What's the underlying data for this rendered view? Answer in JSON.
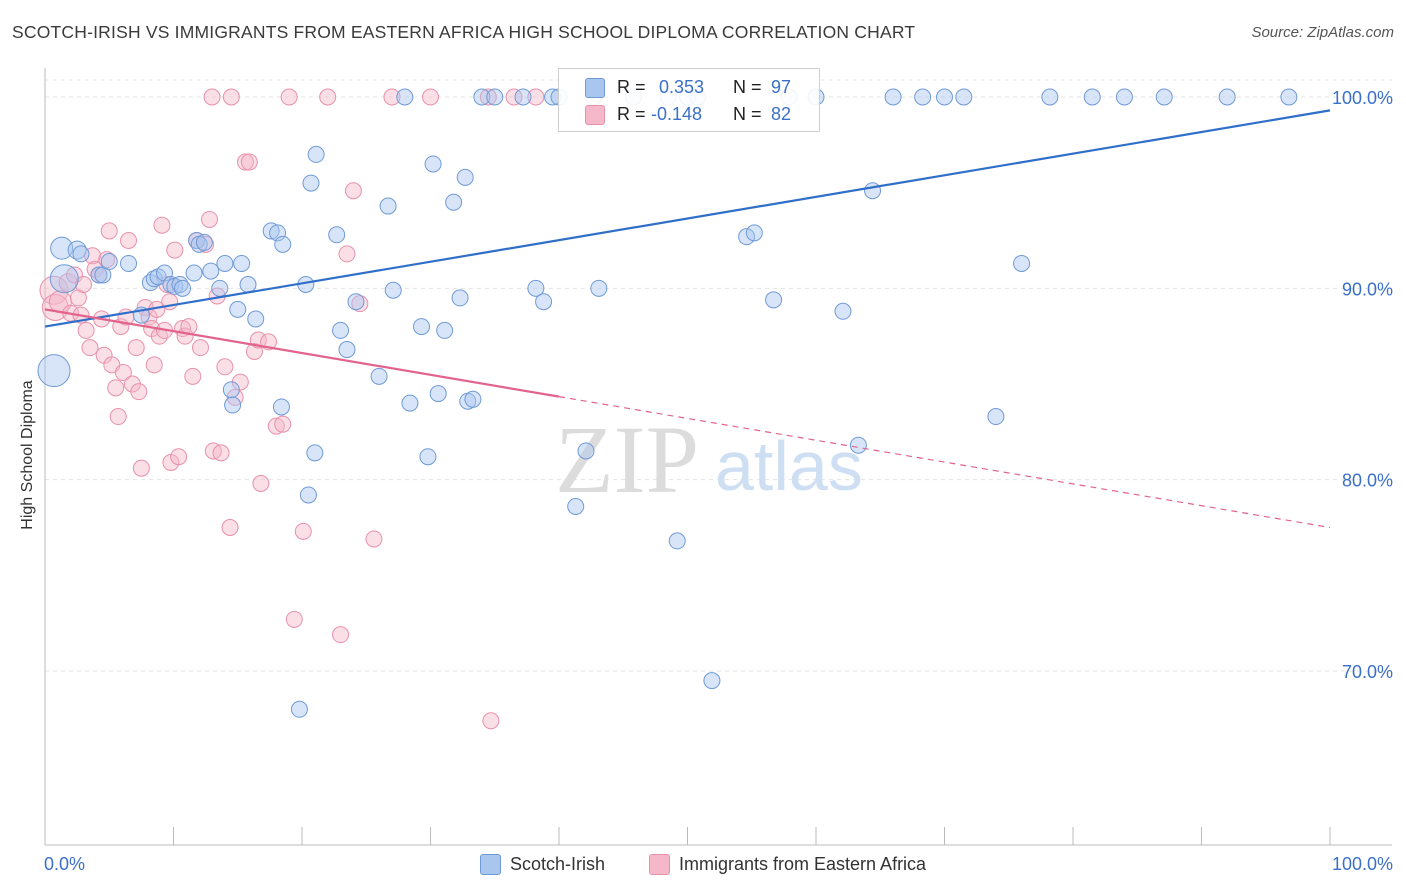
{
  "header": {
    "title": "SCOTCH-IRISH VS IMMIGRANTS FROM EASTERN AFRICA HIGH SCHOOL DIPLOMA CORRELATION CHART",
    "source": "Source: ZipAtlas.com"
  },
  "watermark": {
    "zip": "ZIP",
    "atlas": "atlas"
  },
  "legend": {
    "rows": [
      {
        "r_label": "R =",
        "r_value": "0.353",
        "n_label": "N =",
        "n_value": "97"
      },
      {
        "r_label": "R =",
        "r_value": "-0.148",
        "n_label": "N =",
        "n_value": "82"
      }
    ]
  },
  "bottom_legend": {
    "series1": "Scotch-Irish",
    "series2": "Immigrants from Eastern Africa"
  },
  "chart_data": {
    "type": "scatter",
    "xlabel": "",
    "ylabel": "High School Diploma",
    "xlim": [
      0,
      100
    ],
    "ylim": [
      60.7,
      101.5
    ],
    "x_tick_labels": [
      "0.0%",
      "100.0%"
    ],
    "y_tick_labels": [
      "100.0%",
      "90.0%",
      "80.0%",
      "70.0%"
    ],
    "y_ticks": [
      100,
      90,
      80,
      70
    ],
    "grid": true,
    "colors": {
      "series1_fill": "#a9c6ef",
      "series1_stroke": "#6f9ad6",
      "series1_line": "#2f6fca",
      "series2_fill": "#f5b8ca",
      "series2_stroke": "#e891ab",
      "series2_line": "#e2648c",
      "axis_text": "#3a70c9"
    },
    "series": [
      {
        "name": "Scotch-Irish",
        "trend": {
          "x": [
            0,
            100
          ],
          "y": [
            88.0,
            99.3
          ],
          "dashed_from": null
        },
        "points": [
          [
            0.7,
            85.7,
            16
          ],
          [
            1.3,
            92.1,
            11
          ],
          [
            1.5,
            90.5,
            14
          ],
          [
            2.5,
            92.0,
            9
          ],
          [
            2.8,
            91.8,
            8
          ],
          [
            4.2,
            90.7,
            8
          ],
          [
            4.5,
            90.7,
            8
          ],
          [
            5.0,
            91.4,
            8
          ],
          [
            6.5,
            91.3,
            8
          ],
          [
            7.5,
            88.6,
            8
          ],
          [
            8.2,
            90.3,
            8
          ],
          [
            8.5,
            90.5,
            8
          ],
          [
            8.8,
            90.6,
            8
          ],
          [
            9.3,
            90.8,
            8
          ],
          [
            9.8,
            90.2,
            8
          ],
          [
            10.1,
            90.1,
            8
          ],
          [
            10.5,
            90.2,
            8
          ],
          [
            10.7,
            90.0,
            8
          ],
          [
            11.6,
            90.8,
            8
          ],
          [
            11.8,
            92.5,
            8
          ],
          [
            12.0,
            92.3,
            8
          ],
          [
            12.4,
            92.4,
            8
          ],
          [
            13.6,
            90.0,
            8
          ],
          [
            12.9,
            90.9,
            8
          ],
          [
            14.0,
            91.3,
            8
          ],
          [
            14.5,
            84.7,
            8
          ],
          [
            14.6,
            83.9,
            8
          ],
          [
            15.0,
            88.9,
            8
          ],
          [
            15.8,
            90.2,
            8
          ],
          [
            16.4,
            88.4,
            8
          ],
          [
            15.3,
            91.3,
            8
          ],
          [
            17.6,
            93.0,
            8
          ],
          [
            18.1,
            92.9,
            8
          ],
          [
            18.5,
            92.3,
            8
          ],
          [
            20.3,
            90.2,
            8
          ],
          [
            20.7,
            95.5,
            8
          ],
          [
            18.4,
            83.8,
            8
          ],
          [
            19.8,
            68.0,
            8
          ],
          [
            20.5,
            79.2,
            8
          ],
          [
            21.0,
            81.4,
            8
          ],
          [
            21.1,
            97.0,
            8
          ],
          [
            22.7,
            92.8,
            8
          ],
          [
            23.0,
            87.8,
            8
          ],
          [
            23.5,
            86.8,
            8
          ],
          [
            24.2,
            89.3,
            8
          ],
          [
            26.0,
            85.4,
            8
          ],
          [
            26.7,
            94.3,
            8
          ],
          [
            27.1,
            89.9,
            8
          ],
          [
            28.4,
            84.0,
            8
          ],
          [
            28.0,
            100.0,
            8
          ],
          [
            29.3,
            88.0,
            8
          ],
          [
            29.8,
            81.2,
            8
          ],
          [
            30.2,
            96.5,
            8
          ],
          [
            30.6,
            84.5,
            8
          ],
          [
            31.1,
            87.8,
            8
          ],
          [
            31.8,
            94.5,
            8
          ],
          [
            32.3,
            89.5,
            8
          ],
          [
            32.7,
            95.8,
            8
          ],
          [
            32.9,
            84.1,
            8
          ],
          [
            33.3,
            84.2,
            8
          ],
          [
            34.0,
            100.0,
            8
          ],
          [
            35.0,
            100.0,
            8
          ],
          [
            37.2,
            100.0,
            8
          ],
          [
            38.2,
            90.0,
            8
          ],
          [
            38.8,
            89.3,
            8
          ],
          [
            39.5,
            100.0,
            8
          ],
          [
            40.0,
            100.0,
            8
          ],
          [
            41.3,
            78.6,
            8
          ],
          [
            42.1,
            81.5,
            8
          ],
          [
            42.7,
            100.0,
            8
          ],
          [
            43.1,
            90.0,
            8
          ],
          [
            45.8,
            100.0,
            8
          ],
          [
            48.5,
            100.0,
            8
          ],
          [
            49.2,
            76.8,
            8
          ],
          [
            50.0,
            100.0,
            8
          ],
          [
            50.8,
            100.0,
            8
          ],
          [
            51.9,
            69.5,
            8
          ],
          [
            54.6,
            92.7,
            8
          ],
          [
            55.2,
            92.9,
            8
          ],
          [
            56.7,
            89.4,
            8
          ],
          [
            57.9,
            100.0,
            8
          ],
          [
            60.0,
            100.0,
            8
          ],
          [
            62.1,
            88.8,
            8
          ],
          [
            63.3,
            81.8,
            8
          ],
          [
            64.4,
            95.1,
            8
          ],
          [
            66.0,
            100.0,
            8
          ],
          [
            68.3,
            100.0,
            8
          ],
          [
            70.0,
            100.0,
            8
          ],
          [
            71.5,
            100.0,
            8
          ],
          [
            74.0,
            83.3,
            8
          ],
          [
            76.0,
            91.3,
            8
          ],
          [
            78.2,
            100.0,
            8
          ],
          [
            81.5,
            100.0,
            8
          ],
          [
            84.0,
            100.0,
            8
          ],
          [
            87.1,
            100.0,
            8
          ],
          [
            92.0,
            100.0,
            8
          ],
          [
            96.8,
            100.0,
            8
          ]
        ]
      },
      {
        "name": "Immigrants from Eastern Africa",
        "trend": {
          "x": [
            0,
            100
          ],
          "y": [
            88.9,
            77.5
          ],
          "dashed_from": 40
        },
        "points": [
          [
            0.7,
            89.9,
            14
          ],
          [
            0.8,
            89.0,
            13
          ],
          [
            1.2,
            89.3,
            11
          ],
          [
            1.8,
            90.3,
            9
          ],
          [
            2.0,
            88.7,
            8
          ],
          [
            2.3,
            90.7,
            8
          ],
          [
            2.6,
            89.5,
            8
          ],
          [
            2.8,
            88.6,
            8
          ],
          [
            3.0,
            90.2,
            8
          ],
          [
            3.2,
            87.8,
            8
          ],
          [
            3.5,
            86.9,
            8
          ],
          [
            3.7,
            91.7,
            8
          ],
          [
            3.9,
            91.0,
            8
          ],
          [
            4.2,
            90.7,
            8
          ],
          [
            4.4,
            88.4,
            8
          ],
          [
            4.6,
            86.5,
            8
          ],
          [
            4.8,
            91.5,
            8
          ],
          [
            5.0,
            93.0,
            8
          ],
          [
            5.2,
            86.0,
            8
          ],
          [
            5.5,
            84.8,
            8
          ],
          [
            5.7,
            83.3,
            8
          ],
          [
            5.9,
            88.0,
            8
          ],
          [
            6.1,
            85.6,
            8
          ],
          [
            6.3,
            88.5,
            8
          ],
          [
            6.5,
            92.5,
            8
          ],
          [
            6.8,
            85.0,
            8
          ],
          [
            7.1,
            86.9,
            8
          ],
          [
            7.3,
            84.6,
            8
          ],
          [
            7.5,
            80.6,
            8
          ],
          [
            7.8,
            89.0,
            8
          ],
          [
            8.1,
            88.5,
            8
          ],
          [
            8.3,
            87.9,
            8
          ],
          [
            8.5,
            86.0,
            8
          ],
          [
            8.7,
            88.9,
            8
          ],
          [
            8.9,
            87.5,
            8
          ],
          [
            9.1,
            93.3,
            8
          ],
          [
            9.3,
            87.8,
            8
          ],
          [
            9.5,
            90.2,
            8
          ],
          [
            9.8,
            80.9,
            8
          ],
          [
            10.1,
            92.0,
            8
          ],
          [
            10.4,
            81.2,
            8
          ],
          [
            10.7,
            87.9,
            8
          ],
          [
            10.9,
            87.5,
            8
          ],
          [
            11.2,
            88.0,
            8
          ],
          [
            11.5,
            85.4,
            8
          ],
          [
            11.8,
            92.5,
            8
          ],
          [
            12.1,
            86.9,
            8
          ],
          [
            12.5,
            92.3,
            8
          ],
          [
            12.8,
            93.6,
            8
          ],
          [
            13.1,
            81.5,
            8
          ],
          [
            13.4,
            89.6,
            8
          ],
          [
            13.7,
            81.4,
            8
          ],
          [
            14.0,
            85.9,
            8
          ],
          [
            14.4,
            77.5,
            8
          ],
          [
            14.8,
            84.3,
            8
          ],
          [
            15.2,
            85.1,
            8
          ],
          [
            15.6,
            96.6,
            8
          ],
          [
            15.9,
            96.6,
            8
          ],
          [
            16.3,
            86.7,
            8
          ],
          [
            16.6,
            87.3,
            8
          ],
          [
            14.5,
            100.0,
            8
          ],
          [
            16.8,
            79.8,
            8
          ],
          [
            17.4,
            87.2,
            8
          ],
          [
            18.0,
            82.8,
            8
          ],
          [
            18.5,
            82.9,
            8
          ],
          [
            19.0,
            100.0,
            8
          ],
          [
            19.4,
            72.7,
            8
          ],
          [
            20.1,
            77.3,
            8
          ],
          [
            22.0,
            100.0,
            8
          ],
          [
            23.0,
            71.9,
            8
          ],
          [
            23.5,
            91.8,
            8
          ],
          [
            24.0,
            95.1,
            8
          ],
          [
            24.5,
            89.2,
            8
          ],
          [
            25.6,
            76.9,
            8
          ],
          [
            27.0,
            100.0,
            8
          ],
          [
            30.0,
            100.0,
            8
          ],
          [
            34.5,
            100.0,
            8
          ],
          [
            34.7,
            67.4,
            8
          ],
          [
            36.5,
            100.0,
            8
          ],
          [
            38.2,
            100.0,
            8
          ],
          [
            9.7,
            89.3,
            8
          ],
          [
            13.0,
            100.0,
            8
          ]
        ]
      }
    ]
  }
}
